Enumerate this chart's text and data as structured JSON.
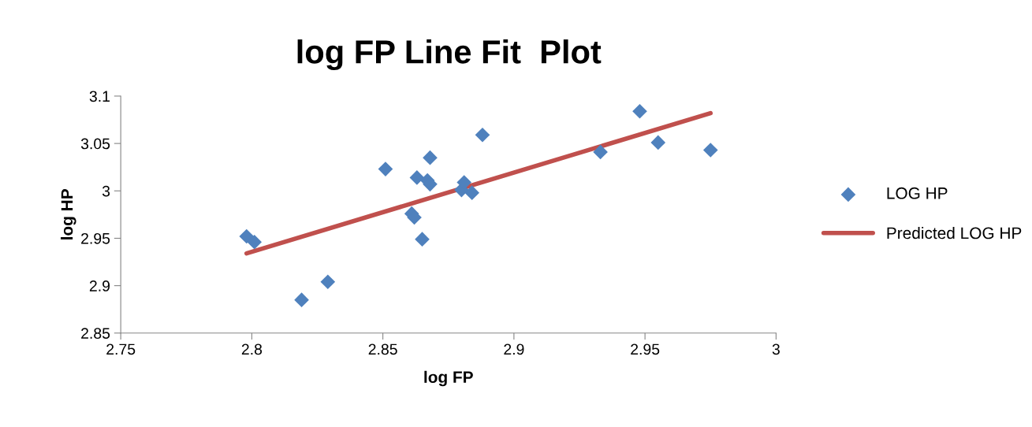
{
  "chart_data": {
    "type": "scatter",
    "title": "log FP Line Fit  Plot",
    "xlabel": "log FP",
    "ylabel": "log HP",
    "xlim": [
      2.75,
      3
    ],
    "xticks": [
      2.75,
      2.8,
      2.85,
      2.9,
      2.95,
      3
    ],
    "ylim": [
      2.85,
      3.1
    ],
    "yticks": [
      2.85,
      2.9,
      2.95,
      3,
      3.05,
      3.1
    ],
    "grid": false,
    "legend": "right",
    "series": [
      {
        "name": "LOG HP",
        "marker": "diamond",
        "color": "#4f81bd",
        "x": [
          2.798,
          2.801,
          2.819,
          2.829,
          2.851,
          2.863,
          2.861,
          2.862,
          2.865,
          2.867,
          2.868,
          2.868,
          2.88,
          2.881,
          2.884,
          2.888,
          2.933,
          2.948,
          2.955,
          2.975
        ],
        "values": [
          2.952,
          2.946,
          2.885,
          2.904,
          3.023,
          3.014,
          2.976,
          2.972,
          2.949,
          3.011,
          3.007,
          3.035,
          3.001,
          3.009,
          2.998,
          3.059,
          3.041,
          3.084,
          3.051,
          3.043
        ]
      },
      {
        "name": "Predicted LOG HP",
        "type": "line",
        "marker": "none",
        "color": "#c0504d",
        "x": [
          2.798,
          2.975
        ],
        "values": [
          2.934,
          3.082
        ]
      }
    ]
  }
}
